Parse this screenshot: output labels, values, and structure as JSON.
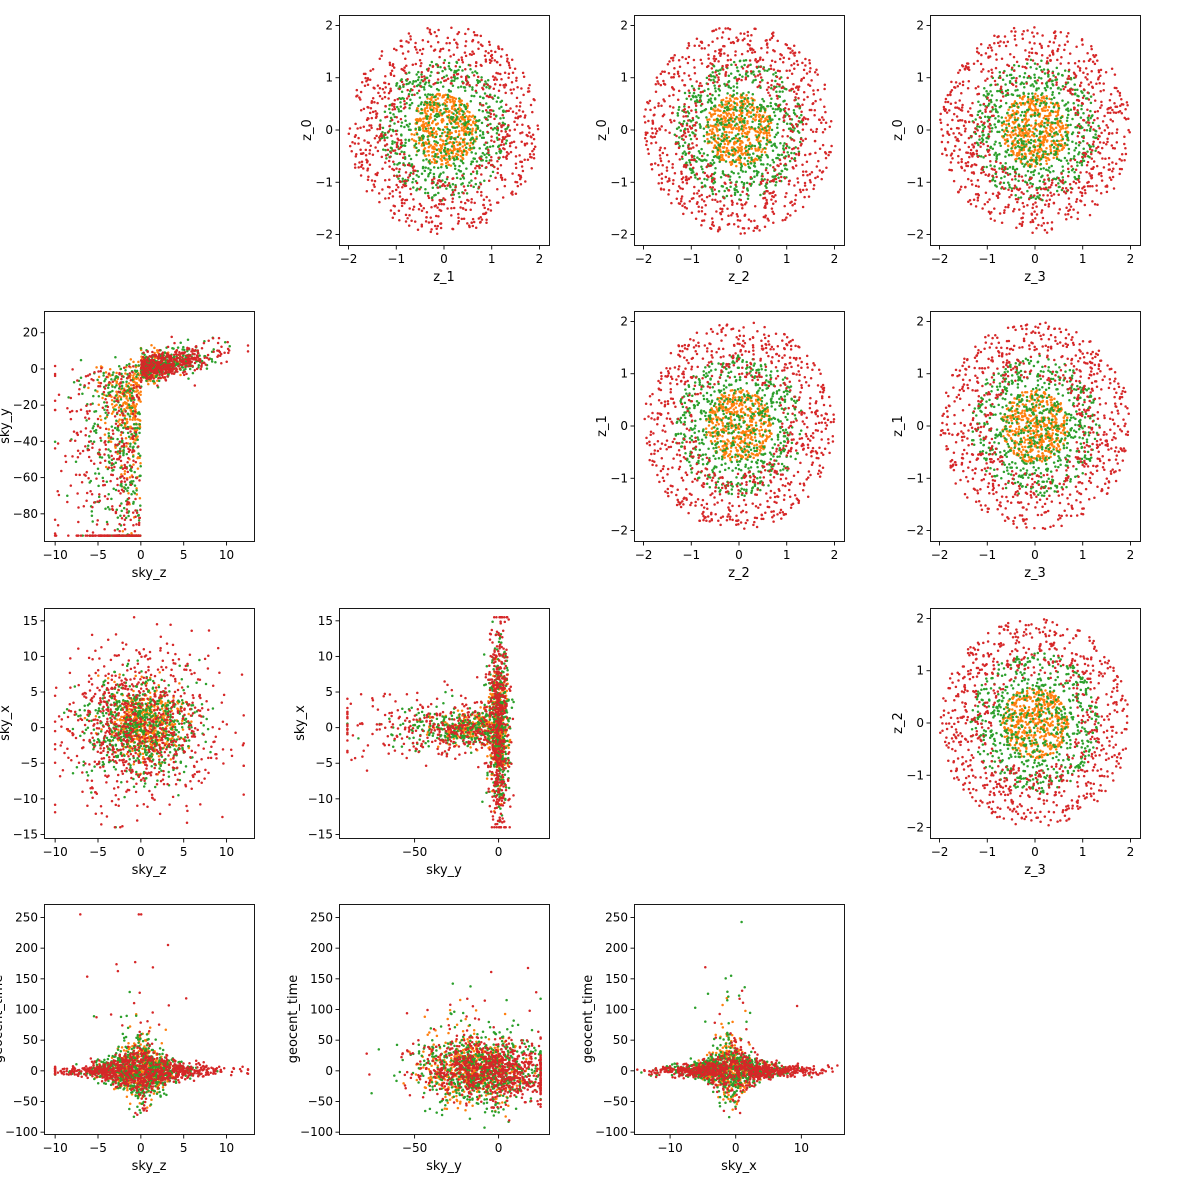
{
  "figure": {
    "background": "#ffffff"
  },
  "colors": [
    "#ff7f0e",
    "#2ca02c",
    "#d62728"
  ],
  "chart_data": [
    {
      "id": "z1-z0",
      "type": "scatter",
      "row": 0,
      "col": 1,
      "xlabel": "z_1",
      "ylabel": "z_0",
      "xlim": [
        -2.2,
        2.2
      ],
      "ylim": [
        -2.2,
        2.2
      ],
      "xticks": [
        -2,
        -1,
        0,
        1,
        2
      ],
      "yticks": [
        -2,
        -1,
        0,
        1,
        2
      ],
      "tick_labels_x": [
        "−2",
        "−1",
        "0",
        "1",
        "2"
      ],
      "tick_labels_y": [
        "−2",
        "−1",
        "0",
        "1",
        "2"
      ],
      "series": [
        {
          "distribution": "disc",
          "radius": 0.7,
          "count": 450,
          "color_index": 0
        },
        {
          "distribution": "disc",
          "radius": 1.35,
          "count": 650,
          "color_index": 1
        },
        {
          "distribution": "annulus",
          "inner": 0.9,
          "outer": 2.0,
          "count": 800,
          "color_index": 2
        }
      ]
    },
    {
      "id": "z2-z0",
      "type": "scatter",
      "row": 0,
      "col": 2,
      "xlabel": "z_2",
      "ylabel": "z_0",
      "xlim": [
        -2.2,
        2.2
      ],
      "ylim": [
        -2.2,
        2.2
      ],
      "xticks": [
        -2,
        -1,
        0,
        1,
        2
      ],
      "yticks": [
        -2,
        -1,
        0,
        1,
        2
      ],
      "tick_labels_x": [
        "−2",
        "−1",
        "0",
        "1",
        "2"
      ],
      "tick_labels_y": [
        "−2",
        "−1",
        "0",
        "1",
        "2"
      ],
      "series": [
        {
          "distribution": "disc",
          "radius": 0.7,
          "count": 450,
          "color_index": 0
        },
        {
          "distribution": "disc",
          "radius": 1.35,
          "count": 650,
          "color_index": 1
        },
        {
          "distribution": "annulus",
          "inner": 0.9,
          "outer": 2.0,
          "count": 800,
          "color_index": 2
        }
      ]
    },
    {
      "id": "z3-z0",
      "type": "scatter",
      "row": 0,
      "col": 3,
      "xlabel": "z_3",
      "ylabel": "z_0",
      "xlim": [
        -2.2,
        2.2
      ],
      "ylim": [
        -2.2,
        2.2
      ],
      "xticks": [
        -2,
        -1,
        0,
        1,
        2
      ],
      "yticks": [
        -2,
        -1,
        0,
        1,
        2
      ],
      "tick_labels_x": [
        "−2",
        "−1",
        "0",
        "1",
        "2"
      ],
      "tick_labels_y": [
        "−2",
        "−1",
        "0",
        "1",
        "2"
      ],
      "series": [
        {
          "distribution": "disc",
          "radius": 0.7,
          "count": 450,
          "color_index": 0
        },
        {
          "distribution": "disc",
          "radius": 1.35,
          "count": 650,
          "color_index": 1
        },
        {
          "distribution": "annulus",
          "inner": 0.9,
          "outer": 2.0,
          "count": 800,
          "color_index": 2
        }
      ]
    },
    {
      "id": "skyz-skyy",
      "type": "scatter",
      "row": 1,
      "col": 0,
      "xlabel": "sky_z",
      "ylabel": "sky_y",
      "xlim": [
        -11.3,
        13.2
      ],
      "ylim": [
        -95,
        32
      ],
      "xticks": [
        -10,
        -5,
        0,
        5,
        10
      ],
      "yticks": [
        -80,
        -60,
        -40,
        -20,
        0,
        20
      ],
      "tick_labels_x": [
        "−10",
        "−5",
        "0",
        "5",
        "10"
      ],
      "tick_labels_y": [
        "−80",
        "−60",
        "−40",
        "−20",
        "0",
        "20"
      ],
      "series": [
        {
          "distribution": "flare",
          "count": 450,
          "color_index": 0,
          "xc": -0.5,
          "xs": 2,
          "taper": 0.6,
          "depth": 35,
          "left": [
            -8,
            0
          ],
          "right": [
            -3,
            7
          ]
        },
        {
          "distribution": "flare",
          "count": 650,
          "color_index": 1,
          "xc": 0,
          "xs": 3.5,
          "taper": 0.35,
          "depth": 70,
          "left": [
            -8,
            0
          ],
          "right": [
            -3,
            7
          ]
        },
        {
          "distribution": "flare",
          "count": 800,
          "color_index": 2,
          "xc": 0,
          "xs": 4.5,
          "taper": 0.25,
          "depth": 90,
          "left": [
            -10,
            0
          ],
          "right": [
            -5,
            22
          ]
        }
      ]
    },
    {
      "id": "z2-z1",
      "type": "scatter",
      "row": 1,
      "col": 2,
      "xlabel": "z_2",
      "ylabel": "z_1",
      "xlim": [
        -2.2,
        2.2
      ],
      "ylim": [
        -2.2,
        2.2
      ],
      "xticks": [
        -2,
        -1,
        0,
        1,
        2
      ],
      "yticks": [
        -2,
        -1,
        0,
        1,
        2
      ],
      "tick_labels_x": [
        "−2",
        "−1",
        "0",
        "1",
        "2"
      ],
      "tick_labels_y": [
        "−2",
        "−1",
        "0",
        "1",
        "2"
      ],
      "series": [
        {
          "distribution": "disc",
          "radius": 0.7,
          "count": 450,
          "color_index": 0
        },
        {
          "distribution": "disc",
          "radius": 1.35,
          "count": 650,
          "color_index": 1
        },
        {
          "distribution": "annulus",
          "inner": 0.9,
          "outer": 2.0,
          "count": 800,
          "color_index": 2
        }
      ]
    },
    {
      "id": "z3-z1",
      "type": "scatter",
      "row": 1,
      "col": 3,
      "xlabel": "z_3",
      "ylabel": "z_1",
      "xlim": [
        -2.2,
        2.2
      ],
      "ylim": [
        -2.2,
        2.2
      ],
      "xticks": [
        -2,
        -1,
        0,
        1,
        2
      ],
      "yticks": [
        -2,
        -1,
        0,
        1,
        2
      ],
      "tick_labels_x": [
        "−2",
        "−1",
        "0",
        "1",
        "2"
      ],
      "tick_labels_y": [
        "−2",
        "−1",
        "0",
        "1",
        "2"
      ],
      "series": [
        {
          "distribution": "disc",
          "radius": 0.7,
          "count": 450,
          "color_index": 0
        },
        {
          "distribution": "disc",
          "radius": 1.35,
          "count": 650,
          "color_index": 1
        },
        {
          "distribution": "annulus",
          "inner": 0.9,
          "outer": 2.0,
          "count": 800,
          "color_index": 2
        }
      ]
    },
    {
      "id": "skyz-skyx",
      "type": "scatter",
      "row": 2,
      "col": 0,
      "xlabel": "sky_z",
      "ylabel": "sky_x",
      "xlim": [
        -11.3,
        13.2
      ],
      "ylim": [
        -15.5,
        16.8
      ],
      "xticks": [
        -10,
        -5,
        0,
        5,
        10
      ],
      "yticks": [
        -15,
        -10,
        -5,
        0,
        5,
        10,
        15
      ],
      "tick_labels_x": [
        "−10",
        "−5",
        "0",
        "5",
        "10"
      ],
      "tick_labels_y": [
        "−15",
        "−10",
        "−5",
        "0",
        "5",
        "10",
        "15"
      ],
      "series": [
        {
          "distribution": "gaussian",
          "count": 450,
          "color_index": 0,
          "cx": 0.5,
          "cy": 0.5,
          "sx": 2,
          "sy": 2.5,
          "xlim": [
            -10,
            12
          ],
          "ylim": [
            -14,
            15.5
          ]
        },
        {
          "distribution": "gaussian",
          "count": 650,
          "color_index": 1,
          "cx": 0,
          "cy": 0,
          "sx": 3.2,
          "sy": 3.5,
          "xlim": [
            -10,
            12
          ],
          "ylim": [
            -14,
            15.5
          ]
        },
        {
          "distribution": "gaussian",
          "count": 800,
          "color_index": 2,
          "cx": 0,
          "cy": 0,
          "sx": 4.5,
          "sy": 5.5,
          "xlim": [
            -10,
            12
          ],
          "ylim": [
            -14,
            15.5
          ]
        }
      ]
    },
    {
      "id": "skyy-skyx",
      "type": "scatter",
      "row": 2,
      "col": 1,
      "xlabel": "sky_y",
      "ylabel": "sky_x",
      "xlim": [
        -95,
        30
      ],
      "ylim": [
        -15.5,
        16.8
      ],
      "xticks": [
        -50,
        0
      ],
      "yticks": [
        -15,
        -10,
        -5,
        0,
        5,
        10,
        15
      ],
      "tick_labels_x": [
        "−50",
        "0"
      ],
      "tick_labels_y": [
        "−15",
        "−10",
        "−5",
        "0",
        "5",
        "10",
        "15"
      ],
      "series": [
        {
          "distribution": "sideways-flare",
          "count": 450,
          "color_index": 0,
          "depth": 35,
          "spread": 2.5,
          "xlim": [
            -90,
            25
          ],
          "ylim": [
            -14,
            15.5
          ]
        },
        {
          "distribution": "sideways-flare",
          "count": 650,
          "color_index": 1,
          "depth": 60,
          "spread": 3.5,
          "xlim": [
            -90,
            25
          ],
          "ylim": [
            -14,
            15.5
          ]
        },
        {
          "distribution": "sideways-flare",
          "count": 800,
          "color_index": 2,
          "depth": 80,
          "spread": 5,
          "xlim": [
            -90,
            25
          ],
          "ylim": [
            -14,
            15.5
          ]
        }
      ]
    },
    {
      "id": "z3-z2",
      "type": "scatter",
      "row": 2,
      "col": 3,
      "xlabel": "z_3",
      "ylabel": "z_2",
      "xlim": [
        -2.2,
        2.2
      ],
      "ylim": [
        -2.2,
        2.2
      ],
      "xticks": [
        -2,
        -1,
        0,
        1,
        2
      ],
      "yticks": [
        -2,
        -1,
        0,
        1,
        2
      ],
      "tick_labels_x": [
        "−2",
        "−1",
        "0",
        "1",
        "2"
      ],
      "tick_labels_y": [
        "−2",
        "−1",
        "0",
        "1",
        "2"
      ],
      "series": [
        {
          "distribution": "disc",
          "radius": 0.7,
          "count": 450,
          "color_index": 0
        },
        {
          "distribution": "disc",
          "radius": 1.35,
          "count": 650,
          "color_index": 1
        },
        {
          "distribution": "annulus",
          "inner": 0.9,
          "outer": 2.0,
          "count": 800,
          "color_index": 2
        }
      ]
    },
    {
      "id": "skyz-geotime",
      "type": "scatter",
      "row": 3,
      "col": 0,
      "xlabel": "sky_z",
      "ylabel": "geocent_time",
      "xlim": [
        -11.3,
        13.2
      ],
      "ylim": [
        -103,
        272
      ],
      "xticks": [
        -10,
        -5,
        0,
        5,
        10
      ],
      "yticks": [
        -100,
        -50,
        0,
        50,
        100,
        150,
        200,
        250
      ],
      "tick_labels_x": [
        "−10",
        "−5",
        "0",
        "5",
        "10"
      ],
      "tick_labels_y": [
        "−100",
        "−50",
        "0",
        "50",
        "100",
        "150",
        "200",
        "250"
      ],
      "series": [
        {
          "distribution": "spike",
          "count": 450,
          "color_index": 0,
          "cx": 0,
          "sx": 2,
          "ys": 25,
          "tail": 50,
          "xlim": [
            -10,
            12.5
          ],
          "ylim": [
            -95,
            255
          ]
        },
        {
          "distribution": "spike",
          "count": 650,
          "color_index": 1,
          "cx": 0,
          "sx": 3,
          "ys": 30,
          "tail": 80,
          "xlim": [
            -10,
            12.5
          ],
          "ylim": [
            -95,
            255
          ]
        },
        {
          "distribution": "spike",
          "count": 800,
          "color_index": 2,
          "cx": 0,
          "sx": 4.5,
          "ys": 25,
          "tail": 120,
          "xlim": [
            -10,
            12.5
          ],
          "ylim": [
            -95,
            255
          ]
        }
      ]
    },
    {
      "id": "skyy-geotime",
      "type": "scatter",
      "row": 3,
      "col": 1,
      "xlabel": "sky_y",
      "ylabel": "geocent_time",
      "xlim": [
        -95,
        30
      ],
      "ylim": [
        -103,
        272
      ],
      "xticks": [
        -50,
        0
      ],
      "yticks": [
        -100,
        -50,
        0,
        50,
        100,
        150,
        200,
        250
      ],
      "tick_labels_x": [
        "−50",
        "0"
      ],
      "tick_labels_y": [
        "−100",
        "−50",
        "0",
        "50",
        "100",
        "150",
        "200",
        "250"
      ],
      "series": [
        {
          "distribution": "clump",
          "count": 450,
          "color_index": 0,
          "cx": -15,
          "sx": 15,
          "ys": 25,
          "xlim": [
            -90,
            25
          ],
          "ylim": [
            -95,
            255
          ]
        },
        {
          "distribution": "clump",
          "count": 650,
          "color_index": 1,
          "cx": -10,
          "sx": 20,
          "ys": 30,
          "xlim": [
            -90,
            25
          ],
          "ylim": [
            -95,
            255
          ]
        },
        {
          "distribution": "clump",
          "count": 800,
          "color_index": 2,
          "cx": -5,
          "sx": 22,
          "ys": 25,
          "xlim": [
            -90,
            25
          ],
          "ylim": [
            -95,
            255
          ]
        }
      ]
    },
    {
      "id": "skyx-geotime",
      "type": "scatter",
      "row": 3,
      "col": 2,
      "xlabel": "sky_x",
      "ylabel": "geocent_time",
      "xlim": [
        -15.5,
        16.5
      ],
      "ylim": [
        -103,
        272
      ],
      "xticks": [
        -10,
        0,
        10
      ],
      "yticks": [
        -100,
        -50,
        0,
        50,
        100,
        150,
        200,
        250
      ],
      "tick_labels_x": [
        "−10",
        "0",
        "10"
      ],
      "tick_labels_y": [
        "−100",
        "−50",
        "0",
        "50",
        "100",
        "150",
        "200",
        "250"
      ],
      "series": [
        {
          "distribution": "spike",
          "count": 450,
          "color_index": 0,
          "cx": -1,
          "sx": 2.5,
          "ys": 25,
          "tail": 50,
          "xlim": [
            -15,
            15.5
          ],
          "ylim": [
            -95,
            255
          ]
        },
        {
          "distribution": "spike",
          "count": 650,
          "color_index": 1,
          "cx": -1,
          "sx": 4,
          "ys": 30,
          "tail": 80,
          "xlim": [
            -15,
            15.5
          ],
          "ylim": [
            -95,
            255
          ]
        },
        {
          "distribution": "spike",
          "count": 800,
          "color_index": 2,
          "cx": 0,
          "sx": 6,
          "ys": 25,
          "tail": 120,
          "xlim": [
            -15,
            15.5
          ],
          "ylim": [
            -95,
            255
          ]
        }
      ]
    }
  ]
}
